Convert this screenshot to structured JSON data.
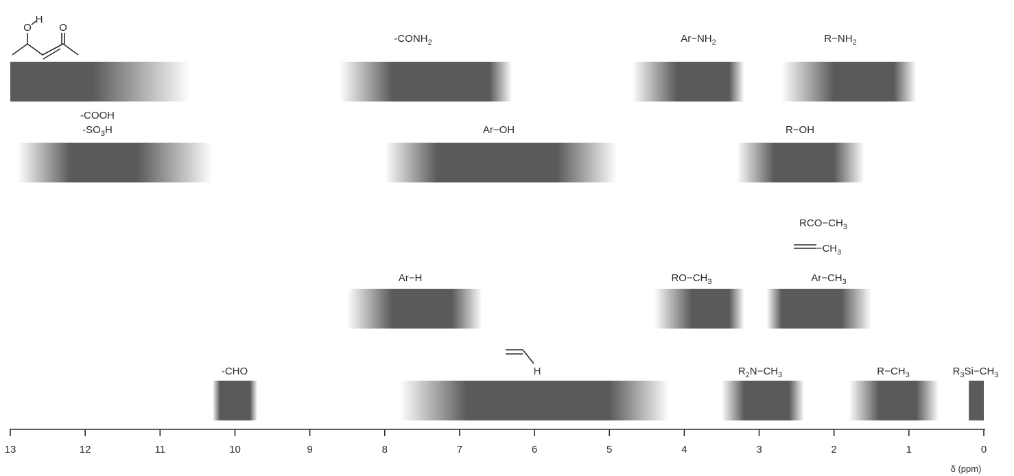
{
  "chart_data": {
    "type": "range",
    "x_axis": {
      "label": "δ (ppm)",
      "range": [
        13,
        0
      ],
      "ticks": [
        13,
        12,
        11,
        10,
        9,
        8,
        7,
        6,
        5,
        4,
        3,
        2,
        1,
        0
      ]
    },
    "grid": false,
    "band_color": "#5a5a5a",
    "series": [
      {
        "label": "enol O–H (acetylacetone)",
        "row": 0,
        "core": [
          13.0,
          11.9
        ],
        "fade": [
          13.0,
          10.6
        ]
      },
      {
        "label": "-CONH₂",
        "row": 0,
        "core": [
          7.9,
          6.6
        ],
        "fade": [
          8.6,
          6.3
        ]
      },
      {
        "label": "Ar–NH₂",
        "row": 0,
        "core": [
          4.1,
          3.4
        ],
        "fade": [
          4.7,
          3.2
        ]
      },
      {
        "label": "R–NH₂",
        "row": 0,
        "core": [
          2.0,
          1.2
        ],
        "fade": [
          2.7,
          0.9
        ]
      },
      {
        "label": "-COOH / -SO₃H",
        "row": 1,
        "core": [
          12.2,
          11.3
        ],
        "fade": [
          12.9,
          10.3
        ]
      },
      {
        "label": "Ar–OH",
        "row": 1,
        "core": [
          7.3,
          5.7
        ],
        "fade": [
          8.0,
          4.9
        ]
      },
      {
        "label": "R–OH",
        "row": 1,
        "core": [
          2.8,
          2.0
        ],
        "fade": [
          3.3,
          1.6
        ]
      },
      {
        "label": "Ar–H",
        "row": 2,
        "core": [
          7.9,
          7.1
        ],
        "fade": [
          8.5,
          6.7
        ]
      },
      {
        "label": "RO–CH₃",
        "row": 2,
        "core": [
          3.9,
          3.4
        ],
        "fade": [
          4.4,
          3.2
        ]
      },
      {
        "label": "RCO–CH₃ / =–CH₃ / Ar–CH₃",
        "row": 2,
        "core": [
          2.7,
          1.9
        ],
        "fade": [
          2.9,
          1.5
        ]
      },
      {
        "label": "-CHO",
        "row": 3,
        "core": [
          10.2,
          9.8
        ],
        "fade": [
          10.3,
          9.7
        ]
      },
      {
        "label": "vinyl =C–H",
        "row": 3,
        "core": [
          6.9,
          5.0
        ],
        "fade": [
          7.8,
          4.2
        ]
      },
      {
        "label": "R₂N–CH₃",
        "row": 3,
        "core": [
          3.2,
          2.6
        ],
        "fade": [
          3.5,
          2.4
        ]
      },
      {
        "label": "R–CH₃",
        "row": 3,
        "core": [
          1.4,
          0.9
        ],
        "fade": [
          1.8,
          0.6
        ]
      },
      {
        "label": "R₃Si–CH₃",
        "row": 3,
        "core": [
          0.2,
          0.0
        ],
        "fade": [
          0.2,
          0.0
        ]
      }
    ],
    "text": {
      "conh2": "-CONH",
      "conh2_sub": "2",
      "arnh2": "Ar−NH",
      "arnh2_sub": "2",
      "rnh2": "R−NH",
      "rnh2_sub": "2",
      "cooh": "-COOH",
      "so3h": "-SO",
      "so3h_sub": "3",
      "so3h_tail": "H",
      "aroh": "Ar−OH",
      "roh": "R−OH",
      "rcoch3": "RCO−CH",
      "rcoch3_sub": "3",
      "dbch3": "−CH",
      "dbch3_sub": "3",
      "arh": "Ar−H",
      "roch3": "RO−CH",
      "roch3_sub": "3",
      "arch3": "Ar−CH",
      "arch3_sub": "3",
      "cho": "-CHO",
      "vinyl_h": "H",
      "r2nch3_a": "R",
      "r2nch3_sub1": "2",
      "r2nch3_b": "N−CH",
      "r2nch3_sub2": "3",
      "rch3": "R−CH",
      "rch3_sub": "3",
      "r3sich3_a": "R",
      "r3sich3_sub1": "3",
      "r3sich3_b": "Si−CH",
      "r3sich3_sub2": "3",
      "enol_o": "O",
      "enol_h": "H",
      "enol_o2": "O"
    }
  }
}
